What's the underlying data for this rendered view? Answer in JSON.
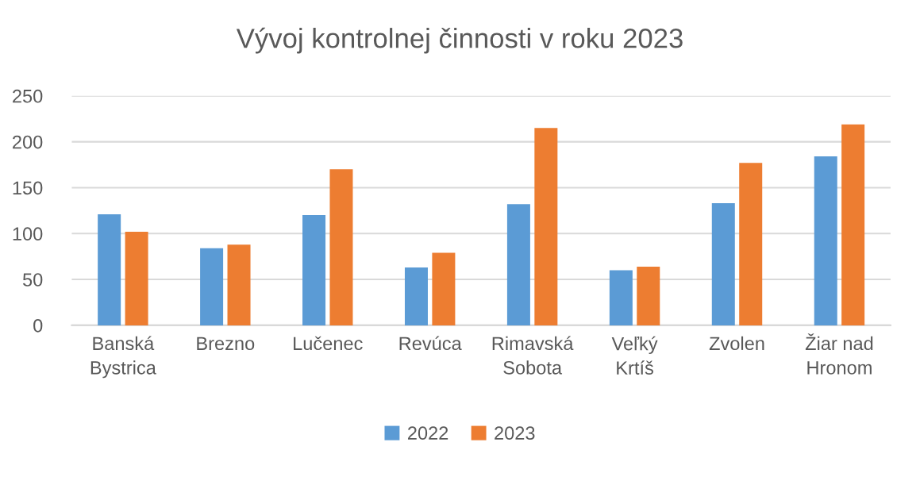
{
  "chart_data": {
    "type": "bar",
    "title": "Vývoj kontrolnej činnosti v roku 2023",
    "categories": [
      "Banská\nBystrica",
      "Brezno",
      "Lučenec",
      "Revúca",
      "Rimavská\nSobota",
      "Veľký\nKrtíš",
      "Zvolen",
      "Žiar nad\nHronom"
    ],
    "series": [
      {
        "name": "2022",
        "color": "#5b9bd5",
        "values": [
          121,
          84,
          120,
          63,
          132,
          60,
          133,
          184
        ]
      },
      {
        "name": "2023",
        "color": "#ed7d31",
        "values": [
          102,
          88,
          170,
          79,
          215,
          64,
          177,
          219
        ]
      }
    ],
    "ylim": [
      0,
      250
    ],
    "yticks": [
      0,
      50,
      100,
      150,
      200,
      250
    ],
    "grid": "y",
    "legend": "bottom"
  }
}
